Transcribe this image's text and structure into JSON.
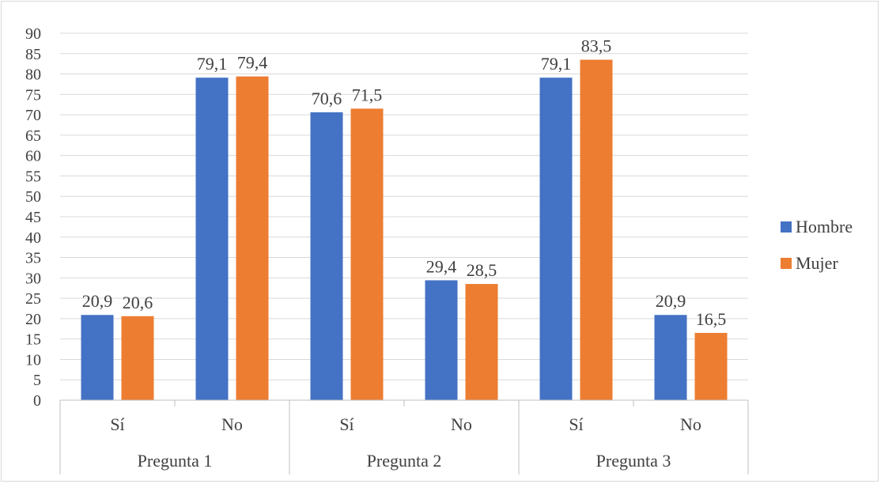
{
  "chart_data": {
    "type": "bar",
    "groups": [
      "Pregunta 1",
      "Pregunta 2",
      "Pregunta 3"
    ],
    "categories": [
      "Sí",
      "No",
      "Sí",
      "No",
      "Sí",
      "No"
    ],
    "series": [
      {
        "name": "Hombre",
        "values": [
          20.9,
          79.1,
          70.6,
          29.4,
          79.1,
          20.9
        ],
        "labels": [
          "20,9",
          "79,1",
          "70,6",
          "29,4",
          "79,1",
          "20,9"
        ],
        "color": "#4472c4"
      },
      {
        "name": "Mujer",
        "values": [
          20.6,
          79.4,
          71.5,
          28.5,
          83.5,
          16.5
        ],
        "labels": [
          "20,6",
          "79,4",
          "71,5",
          "28,5",
          "83,5",
          "16,5"
        ],
        "color": "#ed7d31"
      }
    ],
    "yticks": [
      "0",
      "5",
      "10",
      "15",
      "20",
      "25",
      "30",
      "35",
      "40",
      "45",
      "50",
      "55",
      "60",
      "65",
      "70",
      "75",
      "80",
      "85",
      "90"
    ],
    "ylim": [
      0,
      90
    ],
    "grid": true,
    "legend_position": "right"
  }
}
